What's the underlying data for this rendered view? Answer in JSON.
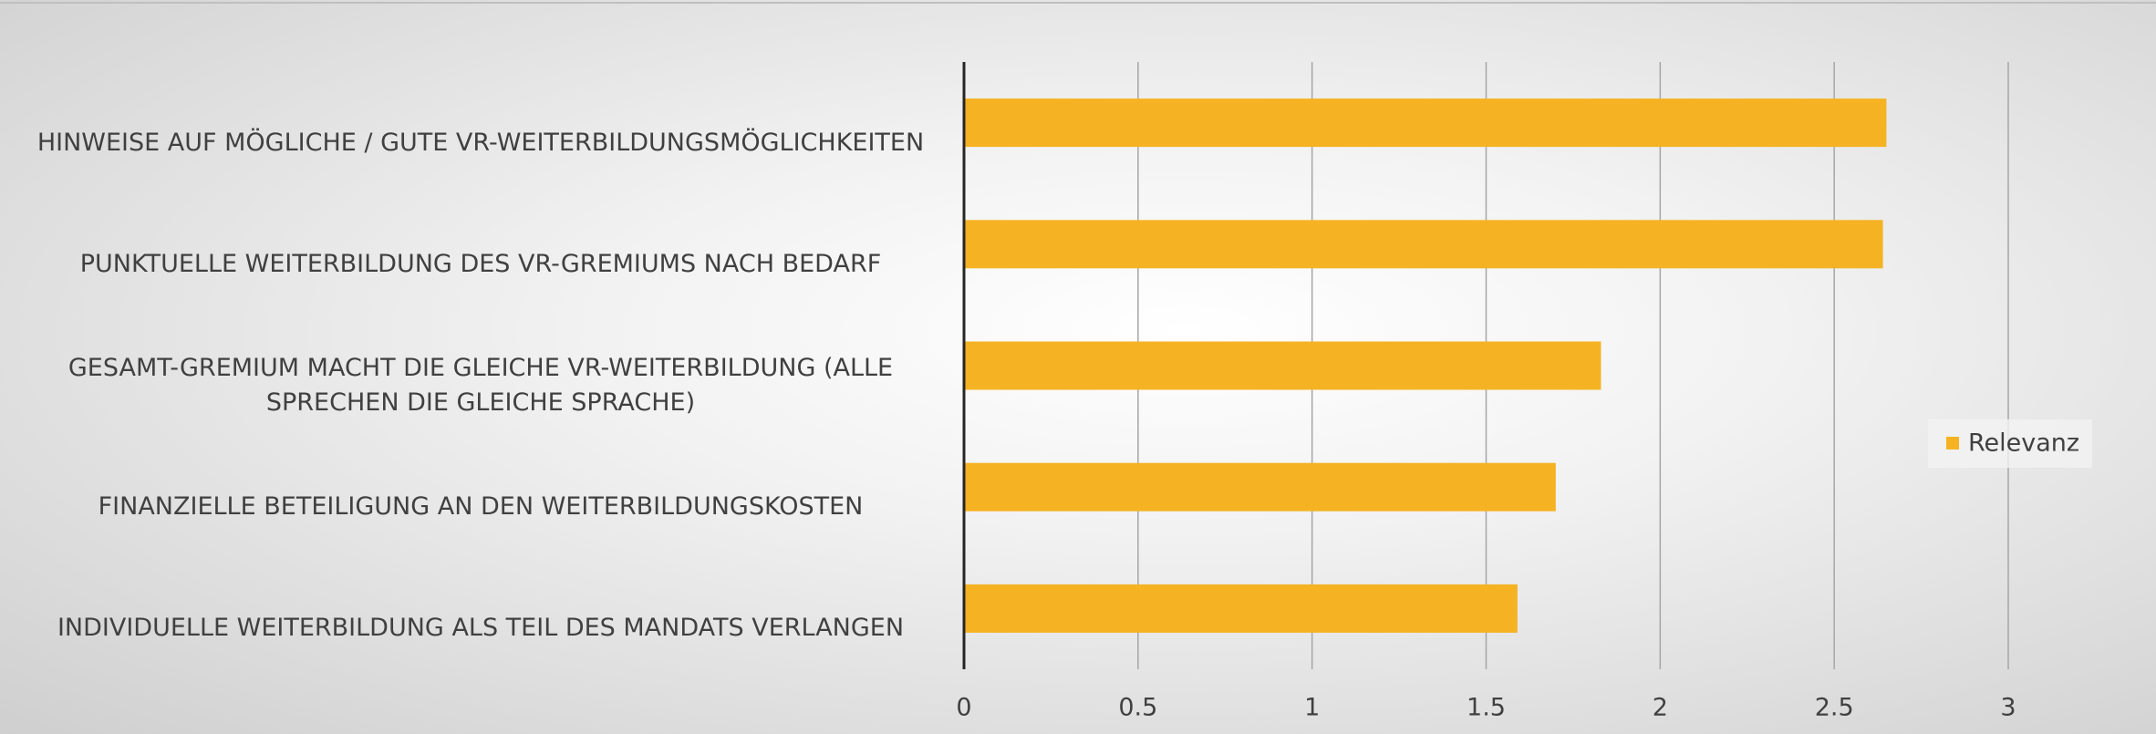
{
  "chart_data": {
    "type": "bar",
    "orientation": "horizontal",
    "categories": [
      "HINWEISE AUF MÖGLICHE / GUTE VR-WEITERBILDUNGSMÖGLICHKEITEN",
      "PUNKTUELLE WEITERBILDUNG DES VR-GREMIUMS NACH BEDARF",
      "GESAMT-GREMIUM MACHT DIE GLEICHE VR-WEITERBILDUNG (ALLE SPRECHEN DIE GLEICHE SPRACHE)",
      "FINANZIELLE BETEILIGUNG AN DEN WEITERBILDUNGSKOSTEN",
      "INDIVIDUELLE WEITERBILDUNG ALS TEIL DES MANDATS VERLANGEN"
    ],
    "series": [
      {
        "name": "Relevanz",
        "color": "#f5b323",
        "values": [
          2.65,
          2.64,
          1.83,
          1.7,
          1.59
        ]
      }
    ],
    "xlim": [
      0,
      3
    ],
    "xticks": [
      0,
      0.5,
      1,
      1.5,
      2,
      2.5,
      3
    ],
    "grid": true,
    "legend": "right"
  }
}
